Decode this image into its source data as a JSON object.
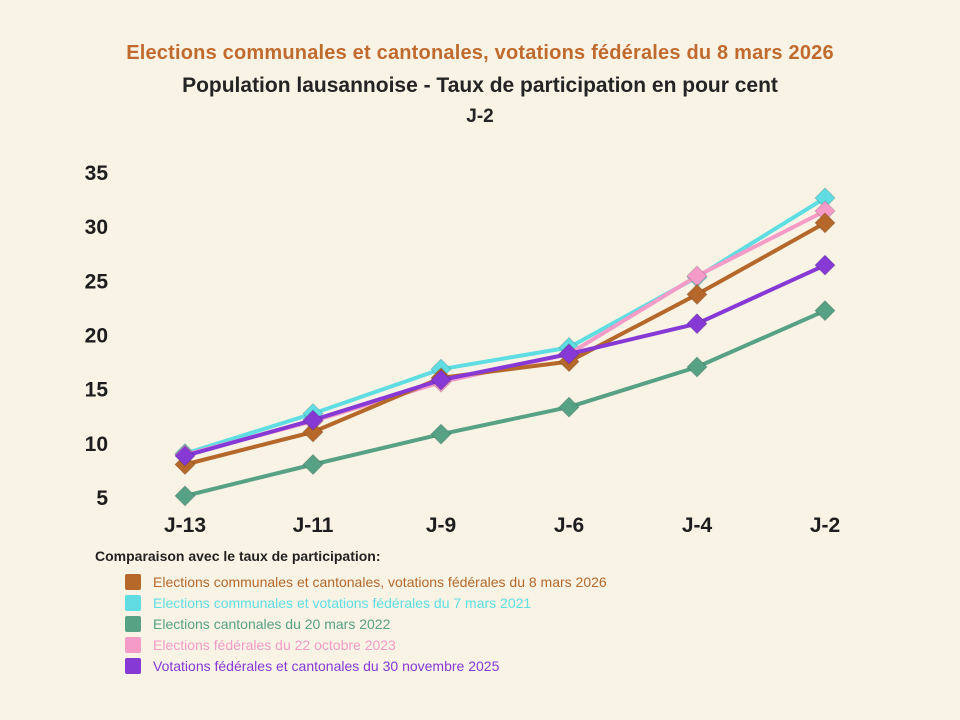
{
  "titles": {
    "line1": "Elections communales et cantonales, votations fédérales du 8 mars 2026",
    "line2": "Population lausannoise - Taux de participation en pour cent",
    "line3": "J-2"
  },
  "colors": {
    "background": "#f9f3e6",
    "title1": "#c06a2e",
    "dark_text": "#242424"
  },
  "chart_data": {
    "type": "line",
    "title": "Population lausannoise - Taux de participation en pour cent",
    "subtitle": "J-2",
    "categories": [
      "J-13",
      "J-11",
      "J-9",
      "J-6",
      "J-4",
      "J-2"
    ],
    "series": [
      {
        "name": "Elections communales et cantonales, votations fédérales du 8 mars 2026",
        "color": "#b5682a",
        "values": [
          8.0,
          11.0,
          16.0,
          17.5,
          23.7,
          30.3
        ]
      },
      {
        "name": "Elections communales et votations fédérales du 7 mars 2021",
        "color": "#5fdde2",
        "values": [
          9.0,
          12.7,
          16.8,
          18.8,
          25.3,
          32.6
        ]
      },
      {
        "name": "Elections cantonales du 20 mars 2022",
        "color": "#57a184",
        "values": [
          5.1,
          8.0,
          10.8,
          13.3,
          17.0,
          22.2
        ]
      },
      {
        "name": "Elections fédérales du 22 octobre 2023",
        "color": "#f59bc8",
        "values": [
          8.9,
          12.0,
          15.6,
          18.2,
          25.4,
          31.4
        ]
      },
      {
        "name": "Votations fédérales et cantonales du 30 novembre 2025",
        "color": "#8739d6",
        "values": [
          8.8,
          12.1,
          15.8,
          18.2,
          21.0,
          26.4
        ]
      }
    ],
    "ylim": [
      5,
      35
    ],
    "yticks": [
      5,
      10,
      15,
      20,
      25,
      30,
      35
    ],
    "grid": false,
    "marker": "diamond",
    "legend_title": "Comparaison avec le taux de participation:",
    "legend_position": "bottom-left",
    "xlabel": "",
    "ylabel": ""
  }
}
